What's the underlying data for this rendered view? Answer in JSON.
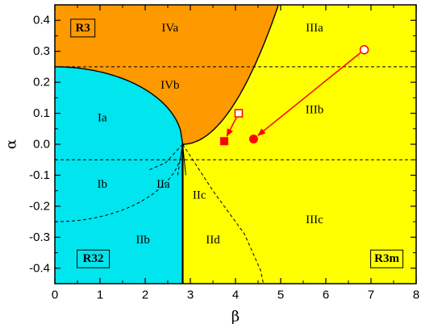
{
  "chart_data": {
    "type": "scatter",
    "xlabel": "β",
    "ylabel": "α",
    "xlim": [
      0,
      8
    ],
    "ylim": [
      -0.45,
      0.45
    ],
    "x_ticks": [
      0,
      1,
      2,
      3,
      4,
      5,
      6,
      7,
      8
    ],
    "x_tick_labels": [
      "0",
      "1",
      "2",
      "3",
      "4",
      "5",
      "6",
      "7",
      "8"
    ],
    "y_ticks": [
      -0.4,
      -0.3,
      -0.2,
      -0.1,
      0.0,
      0.1,
      0.2,
      0.3,
      0.4
    ],
    "y_tick_labels": [
      "-0.4",
      "-0.3",
      "-0.2",
      "-0.1",
      "0.0",
      "0.1",
      "0.2",
      "0.3",
      "0.4"
    ],
    "colors": {
      "R3": "#ff9900",
      "R32": "#00e5ee",
      "R3m": "#ffff00",
      "marker": "#ff0000"
    },
    "triple_point": [
      2.83,
      0.0
    ],
    "phase_regions": [
      {
        "name": "R3",
        "color": "R3"
      },
      {
        "name": "R32",
        "color": "R32"
      },
      {
        "name": "R3m",
        "color": "R3m"
      }
    ],
    "phase_labels": [
      {
        "text": "R3",
        "x": 0.62,
        "y": 0.375
      },
      {
        "text": "R32",
        "x": 0.85,
        "y": -0.37
      },
      {
        "text": "R3m",
        "x": 7.35,
        "y": -0.37
      }
    ],
    "region_labels": [
      {
        "text": "IVa",
        "x": 2.55,
        "y": 0.375
      },
      {
        "text": "IVb",
        "x": 2.55,
        "y": 0.19
      },
      {
        "text": "IIIa",
        "x": 5.75,
        "y": 0.375
      },
      {
        "text": "IIIb",
        "x": 5.75,
        "y": 0.11
      },
      {
        "text": "IIIc",
        "x": 5.75,
        "y": -0.245
      },
      {
        "text": "Ia",
        "x": 1.05,
        "y": 0.085
      },
      {
        "text": "Ib",
        "x": 1.05,
        "y": -0.13
      },
      {
        "text": "IIa",
        "x": 2.4,
        "y": -0.13
      },
      {
        "text": "IIb",
        "x": 1.95,
        "y": -0.31
      },
      {
        "text": "IIc",
        "x": 3.2,
        "y": -0.165
      },
      {
        "text": "IId",
        "x": 3.5,
        "y": -0.31
      }
    ],
    "boundary_R3": {
      "type": "parabola",
      "vertex": [
        2.83,
        0.0
      ],
      "k": 0.1
    },
    "boundary_R32": {
      "type": "ellipse_quarter",
      "x_max": 2.83,
      "y_max": 0.25
    },
    "dashed_lines": [
      {
        "type": "horizontal",
        "y": 0.25
      },
      {
        "type": "horizontal",
        "y": -0.05
      },
      {
        "type": "ellipse_quarter",
        "x_max": 2.83,
        "y_max": -0.25
      },
      {
        "type": "curve",
        "points": [
          [
            2.83,
            0.0
          ],
          [
            3.5,
            -0.15
          ],
          [
            4.2,
            -0.29
          ],
          [
            4.55,
            -0.405
          ],
          [
            4.62,
            -0.45
          ]
        ]
      },
      {
        "type": "curve",
        "points": [
          [
            2.83,
            0.0
          ],
          [
            2.45,
            -0.06
          ],
          [
            2.05,
            -0.085
          ]
        ]
      },
      {
        "type": "line",
        "points": [
          [
            2.83,
            0.0
          ],
          [
            2.72,
            -0.1
          ]
        ]
      }
    ],
    "guide_lines": [
      {
        "from": [
          2.83,
          0.0
        ],
        "to": [
          2.9,
          -0.1
        ]
      }
    ],
    "series": [
      {
        "marker": "circle",
        "points": [
          [
            6.85,
            0.305
          ],
          [
            4.4,
            0.017
          ]
        ]
      },
      {
        "marker": "square",
        "points": [
          [
            4.07,
            0.1
          ],
          [
            3.75,
            0.01
          ]
        ]
      }
    ]
  }
}
